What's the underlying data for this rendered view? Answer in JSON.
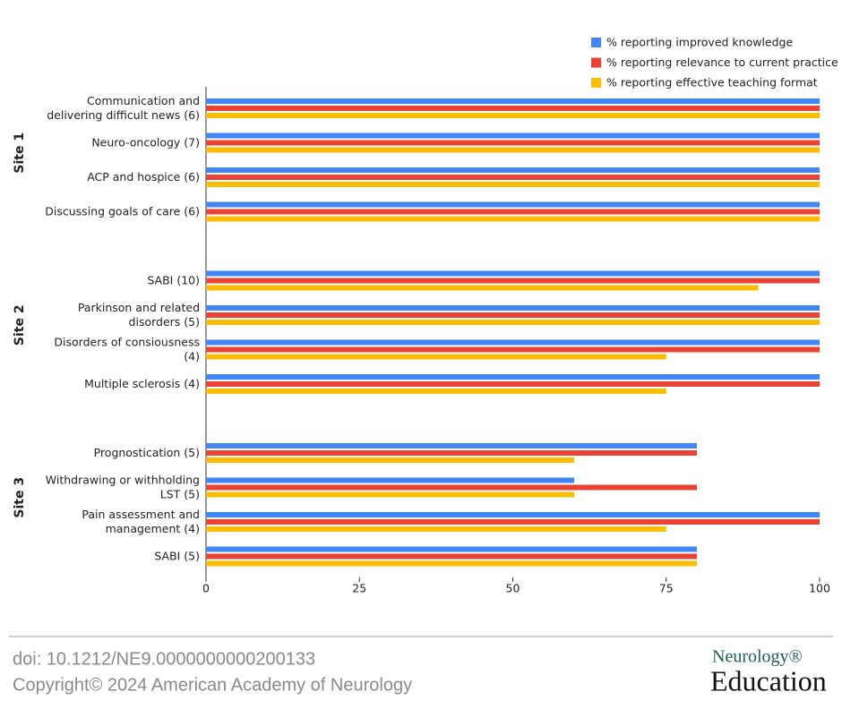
{
  "chart_data": {
    "type": "bar",
    "orientation": "horizontal",
    "groups": [
      {
        "name": "Site 1",
        "categories": [
          [
            "Communication and",
            "delivering difficult news (6)"
          ],
          [
            "Neuro-oncology (7)"
          ],
          [
            "ACP and hospice (6)"
          ],
          [
            "Discussing goals of care (6)"
          ]
        ]
      },
      {
        "name": "Site 2",
        "categories": [
          [
            "SABI (10)"
          ],
          [
            "Parkinson and related",
            "disorders (5)"
          ],
          [
            "Disorders of consiousness",
            "(4)"
          ],
          [
            "Multiple sclerosis (4)"
          ]
        ]
      },
      {
        "name": "Site 3",
        "categories": [
          [
            "Prognostication (5)"
          ],
          [
            "Withdrawing or withholding",
            "LST (5)"
          ],
          [
            "Pain assessment and",
            "management (4)"
          ],
          [
            "SABI (5)"
          ]
        ]
      }
    ],
    "series": [
      {
        "name": "% reporting improved knowledge",
        "color": "#4285f4",
        "values": [
          [
            100,
            100,
            100,
            100
          ],
          [
            100,
            100,
            100,
            100
          ],
          [
            80,
            60,
            100,
            80
          ]
        ]
      },
      {
        "name": "% reporting relevance to current practice",
        "color": "#ea4335",
        "values": [
          [
            100,
            100,
            100,
            100
          ],
          [
            100,
            100,
            100,
            100
          ],
          [
            80,
            80,
            100,
            80
          ]
        ]
      },
      {
        "name": "% reporting effective teaching format",
        "color": "#fbbc04",
        "values": [
          [
            100,
            100,
            100,
            100
          ],
          [
            90,
            100,
            75,
            75
          ],
          [
            60,
            60,
            75,
            80
          ]
        ]
      }
    ],
    "xlim": [
      0,
      100
    ],
    "xticks": [
      0,
      25,
      50,
      75,
      100
    ],
    "legend": "top-right"
  },
  "footer": {
    "doi": "doi: 10.1212/NE9.0000000000200133",
    "copyright": "Copyright© 2024 American Academy of Neurology"
  },
  "logo": {
    "brand": "Neurology®",
    "product": "Education"
  }
}
